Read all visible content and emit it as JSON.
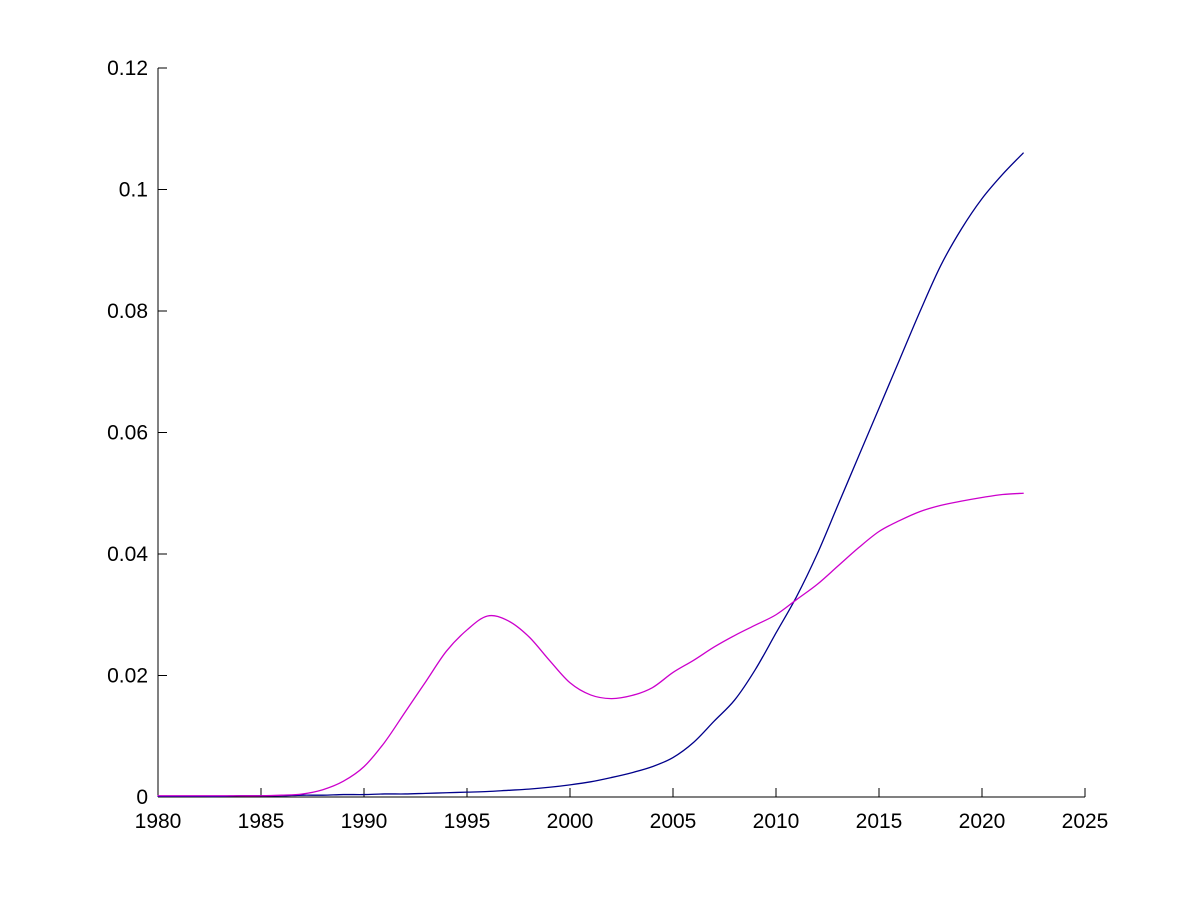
{
  "figure": {
    "background_color": "#ffffff",
    "axis_color": "#000000"
  },
  "chart_data": {
    "type": "line",
    "title": "",
    "xlabel": "",
    "ylabel": "",
    "grid": false,
    "legend": "none",
    "xlim": [
      1980,
      2025
    ],
    "ylim": [
      0,
      0.12
    ],
    "x_ticks": [
      1980,
      1985,
      1990,
      1995,
      2000,
      2005,
      2010,
      2015,
      2020,
      2025
    ],
    "x_tick_labels": [
      "1980",
      "1985",
      "1990",
      "1995",
      "2000",
      "2005",
      "2010",
      "2015",
      "2020",
      "2025"
    ],
    "y_ticks": [
      0,
      0.02,
      0.04,
      0.06,
      0.08,
      0.1,
      0.12
    ],
    "y_tick_labels": [
      "0",
      "0.02",
      "0.04",
      "0.06",
      "0.08",
      "0.1",
      "0.12"
    ],
    "x": [
      1980,
      1981,
      1982,
      1983,
      1984,
      1985,
      1986,
      1987,
      1988,
      1989,
      1990,
      1991,
      1992,
      1993,
      1994,
      1995,
      1996,
      1997,
      1998,
      1999,
      2000,
      2001,
      2002,
      2003,
      2004,
      2005,
      2006,
      2007,
      2008,
      2009,
      2010,
      2011,
      2012,
      2013,
      2014,
      2015,
      2016,
      2017,
      2018,
      2019,
      2020,
      2021,
      2022
    ],
    "series": [
      {
        "name": "dark-blue-line",
        "color": "#00008B",
        "values": [
          0.0001,
          0.0001,
          0.0001,
          0.0001,
          0.0002,
          0.0002,
          0.0002,
          0.0003,
          0.0003,
          0.0004,
          0.0004,
          0.0005,
          0.0005,
          0.0006,
          0.0007,
          0.0008,
          0.0009,
          0.0011,
          0.0013,
          0.0016,
          0.002,
          0.0025,
          0.0032,
          0.004,
          0.005,
          0.0065,
          0.009,
          0.0125,
          0.016,
          0.021,
          0.027,
          0.033,
          0.04,
          0.048,
          0.056,
          0.064,
          0.072,
          0.08,
          0.0875,
          0.0935,
          0.0985,
          0.1025,
          0.106
        ]
      },
      {
        "name": "magenta-line",
        "color": "#CC00CC",
        "values": [
          0.0002,
          0.0002,
          0.0002,
          0.0002,
          0.0002,
          0.0002,
          0.0003,
          0.0005,
          0.0012,
          0.0026,
          0.005,
          0.009,
          0.014,
          0.019,
          0.024,
          0.0275,
          0.0298,
          0.029,
          0.0264,
          0.0225,
          0.0188,
          0.0168,
          0.0162,
          0.0167,
          0.018,
          0.0205,
          0.0225,
          0.0247,
          0.0266,
          0.0283,
          0.03,
          0.0325,
          0.035,
          0.038,
          0.041,
          0.0437,
          0.0455,
          0.047,
          0.048,
          0.0487,
          0.0493,
          0.0498,
          0.05
        ]
      }
    ]
  }
}
